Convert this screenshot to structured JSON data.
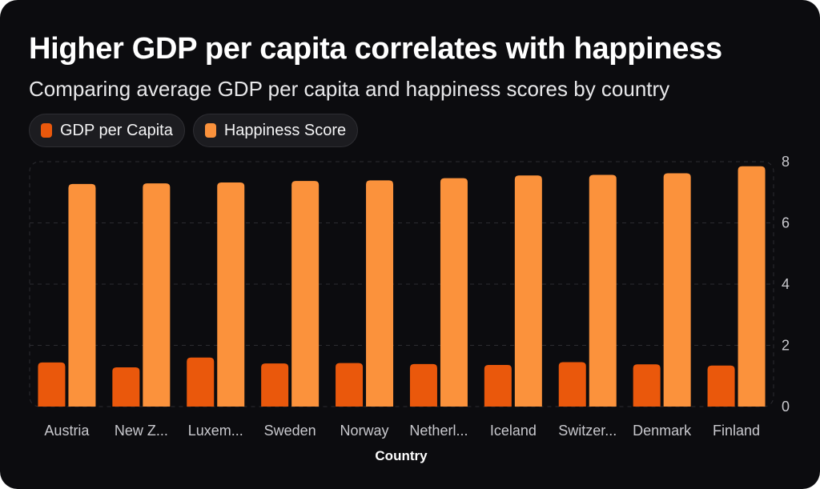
{
  "title": "Higher GDP per capita correlates with happiness",
  "subtitle": "Comparing average GDP per capita and happiness scores by country",
  "colors": {
    "background": "#0c0c0f",
    "gdp": "#ea580c",
    "happiness": "#fb923c"
  },
  "chart_data": {
    "type": "bar",
    "title": "Higher GDP per capita correlates with happiness",
    "subtitle": "Comparing average GDP per capita and happiness scores by country",
    "xlabel": "Country",
    "ylabel": "",
    "ylim": [
      0,
      8
    ],
    "yticks": [
      0,
      2,
      4,
      6,
      8
    ],
    "grid": true,
    "legend_placement": "top-left",
    "categories": [
      "Austria",
      "New Z...",
      "Luxem...",
      "Sweden",
      "Norway",
      "Netherl...",
      "Iceland",
      "Switzer...",
      "Denmark",
      "Finland"
    ],
    "series": [
      {
        "name": "GDP per Capita",
        "color": "#ea580c",
        "values": [
          1.44,
          1.28,
          1.6,
          1.41,
          1.42,
          1.39,
          1.36,
          1.45,
          1.38,
          1.34
        ]
      },
      {
        "name": "Happiness Score",
        "color": "#fb923c",
        "values": [
          7.27,
          7.29,
          7.32,
          7.37,
          7.39,
          7.46,
          7.55,
          7.57,
          7.62,
          7.85
        ]
      }
    ]
  }
}
